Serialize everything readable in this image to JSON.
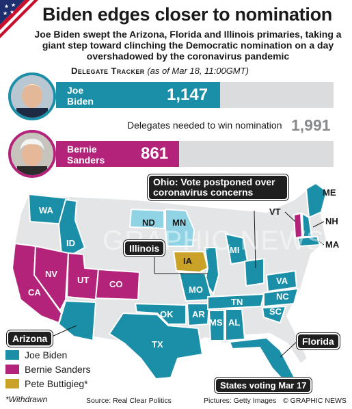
{
  "header": {
    "title": "Biden edges closer to nomination",
    "subtitle": "Joe Biden swept the Arizona, Florida and Illinois primaries, taking a giant step toward clinching the Democratic nomination on a day overshadowed by the coronavirus pandemic"
  },
  "tracker": {
    "heading": "Delegate Tracker",
    "date": "(as of Mar 18, 11:00GMT)",
    "needed_label": "Delegates needed to win nomination",
    "needed_value": "1,991",
    "candidates": [
      {
        "name_line1": "Joe",
        "name_line2": "Biden",
        "delegates": "1,147",
        "delegates_num": 1147,
        "color": "#1b8fa8"
      },
      {
        "name_line1": "Bernie",
        "name_line2": "Sanders",
        "delegates": "861",
        "delegates_num": 861,
        "color": "#b3237a"
      }
    ]
  },
  "map": {
    "colors": {
      "biden": "#1b8fa8",
      "sanders": "#b3237a",
      "buttigieg": "#c9a227",
      "other": "#e4e5e6",
      "highlight": "#8fd3e4"
    },
    "labels": {
      "WA": "WA",
      "ID": "ID",
      "CA": "CA",
      "NV": "NV",
      "UT": "UT",
      "CO": "CO",
      "ND": "ND",
      "MN": "MN",
      "IA": "IA",
      "MO": "MO",
      "OK": "OK",
      "AR": "AR",
      "TX": "TX",
      "MS": "MS",
      "AL": "AL",
      "TN": "TN",
      "MI": "MI",
      "VA": "VA",
      "NC": "NC",
      "SC": "SC",
      "ME": "ME",
      "VT": "VT",
      "NH": "NH",
      "MA": "MA"
    },
    "callouts": {
      "ohio": "Ohio: Vote postponed over coronavirus concerns",
      "illinois": "Illinois",
      "arizona": "Arizona",
      "florida": "Florida"
    },
    "watermark": "GRAPHIC NEWS"
  },
  "legend": {
    "items": [
      {
        "label": "Joe Biden",
        "color": "#1b8fa8"
      },
      {
        "label": "Bernie Sanders",
        "color": "#b3237a"
      },
      {
        "label": "Pete Buttigieg*",
        "color": "#c9a227"
      }
    ],
    "voting_label": "States voting Mar 17"
  },
  "footer": {
    "withdrawn": "*Withdrawn",
    "source": "Source: Real Clear Politics",
    "pictures": "Pictures: Getty Images",
    "credit": "© GRAPHIC NEWS"
  }
}
